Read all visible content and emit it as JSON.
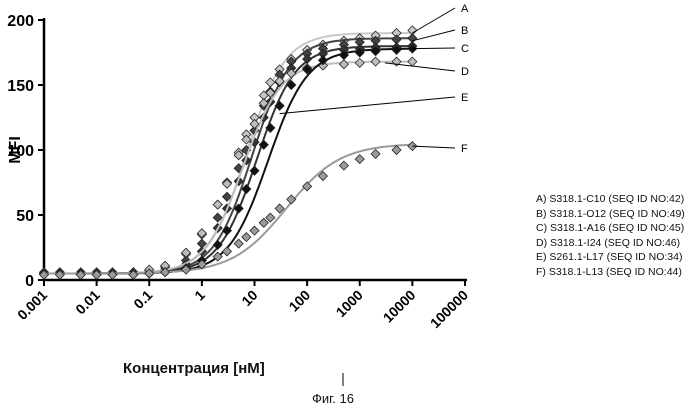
{
  "chart_data": {
    "type": "line",
    "ylabel": "MFI",
    "xlabel": "Концентрация [нМ]",
    "xscale": "log",
    "xlim": [
      0.001,
      100000
    ],
    "ylim": [
      0,
      200
    ],
    "xticks": [
      "0.001",
      "0.01",
      "0.1",
      "1",
      "10",
      "100",
      "1000",
      "10000",
      "100000"
    ],
    "yticks": [
      "0",
      "50",
      "100",
      "150",
      "200"
    ],
    "grid": false,
    "legend_position": "right",
    "series": [
      {
        "name": "A",
        "legend": "A) S318.1-C10 (SEQ ID NO:42)",
        "color": "#c8c8c8",
        "max": 190,
        "ec50": 7,
        "hill": 1.2,
        "x": [
          0.001,
          0.002,
          0.005,
          0.01,
          0.02,
          0.05,
          0.1,
          0.2,
          0.5,
          1,
          2,
          3,
          5,
          7,
          10,
          15,
          20,
          30,
          50,
          100,
          200,
          500,
          1000,
          2000,
          5000,
          10000
        ],
        "y": [
          5,
          5,
          5,
          5,
          5,
          6,
          7,
          10,
          20,
          35,
          58,
          75,
          98,
          112,
          125,
          142,
          152,
          162,
          170,
          177,
          181,
          184,
          186,
          188,
          190,
          192
        ]
      },
      {
        "name": "B",
        "legend": "B) S318.1-O12 (SEQ ID NO:49)",
        "color": "#444444",
        "max": 186,
        "ec50": 9,
        "hill": 1.2,
        "x": [
          0.001,
          0.002,
          0.005,
          0.01,
          0.02,
          0.05,
          0.1,
          0.2,
          0.5,
          1,
          2,
          3,
          5,
          7,
          10,
          15,
          20,
          30,
          50,
          100,
          200,
          500,
          1000,
          2000,
          5000,
          10000
        ],
        "y": [
          5,
          5,
          5,
          5,
          5,
          5,
          6,
          8,
          15,
          28,
          48,
          64,
          86,
          100,
          115,
          134,
          145,
          158,
          168,
          174,
          178,
          181,
          183,
          184,
          185,
          186
        ]
      },
      {
        "name": "C",
        "legend": "C) S318.1-A16 (SEQ ID NO:45)",
        "color": "#333333",
        "max": 180,
        "ec50": 11,
        "hill": 1.2,
        "x": [
          0.001,
          0.002,
          0.005,
          0.01,
          0.02,
          0.05,
          0.1,
          0.2,
          0.5,
          1,
          2,
          3,
          5,
          7,
          10,
          15,
          20,
          30,
          50,
          100,
          200,
          500,
          1000,
          2000,
          5000,
          10000
        ],
        "y": [
          5,
          5,
          5,
          5,
          5,
          5,
          6,
          7,
          12,
          22,
          40,
          55,
          76,
          92,
          106,
          125,
          137,
          152,
          163,
          170,
          174,
          177,
          178,
          179,
          179,
          180
        ]
      },
      {
        "name": "D",
        "legend": "D) S318.1-I24 (SEQ ID NO:46)",
        "color": "#bdbdbd",
        "max": 168,
        "ec50": 6,
        "hill": 1.2,
        "x": [
          0.001,
          0.002,
          0.005,
          0.01,
          0.02,
          0.05,
          0.1,
          0.2,
          0.5,
          1,
          2,
          3,
          5,
          7,
          10,
          15,
          20,
          30,
          50,
          100,
          200,
          500,
          1000,
          2000,
          5000,
          10000
        ],
        "y": [
          6,
          6,
          6,
          6,
          6,
          6,
          8,
          11,
          21,
          36,
          58,
          74,
          96,
          108,
          120,
          136,
          144,
          153,
          159,
          163,
          165,
          166,
          167,
          168,
          168,
          168
        ]
      },
      {
        "name": "E",
        "legend": "E) S261.1-L17 (SEQ ID NO:34)",
        "color": "#111111",
        "max": 178,
        "ec50": 18,
        "hill": 1.15,
        "x": [
          0.001,
          0.002,
          0.005,
          0.01,
          0.02,
          0.05,
          0.1,
          0.2,
          0.5,
          1,
          2,
          3,
          5,
          7,
          10,
          15,
          20,
          30,
          50,
          100,
          200,
          500,
          1000,
          2000,
          5000,
          10000
        ],
        "y": [
          5,
          5,
          5,
          5,
          5,
          5,
          5,
          6,
          9,
          15,
          27,
          38,
          55,
          70,
          84,
          104,
          117,
          134,
          150,
          162,
          169,
          173,
          175,
          176,
          177,
          178
        ]
      },
      {
        "name": "F",
        "legend": "F) S318.1-L13 (SEQ ID NO:44)",
        "color": "#9a9a9a",
        "max": 105,
        "ec50": 40,
        "hill": 0.85,
        "x": [
          0.001,
          0.002,
          0.005,
          0.01,
          0.02,
          0.05,
          0.1,
          0.2,
          0.5,
          1,
          2,
          3,
          5,
          7,
          10,
          15,
          20,
          30,
          50,
          100,
          200,
          500,
          1000,
          2000,
          5000,
          10000
        ],
        "y": [
          4,
          4,
          4,
          4,
          4,
          4,
          5,
          6,
          8,
          12,
          18,
          22,
          28,
          33,
          38,
          44,
          48,
          55,
          62,
          72,
          80,
          88,
          93,
          97,
          100,
          103
        ]
      }
    ]
  },
  "annotations": [
    "A",
    "B",
    "C",
    "D",
    "E",
    "F"
  ],
  "caption": "Фиг. 16"
}
